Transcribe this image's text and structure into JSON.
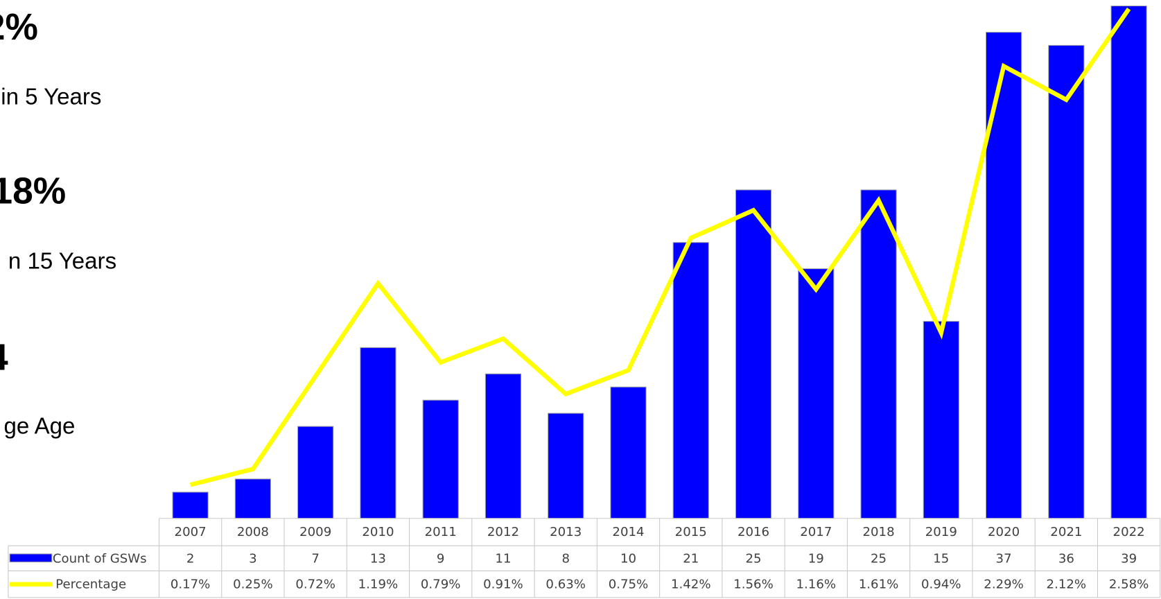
{
  "stats": [
    {
      "value": "2%",
      "label": "in 5 Years"
    },
    {
      "value": "18%",
      "label": "n 15 Years"
    },
    {
      "value": "4",
      "label": "ge Age"
    }
  ],
  "chart_data": {
    "type": "bar",
    "categories": [
      "2007",
      "2008",
      "2009",
      "2010",
      "2011",
      "2012",
      "2013",
      "2014",
      "2015",
      "2016",
      "2017",
      "2018",
      "2019",
      "2020",
      "2021",
      "2022"
    ],
    "series": [
      {
        "name": "Count of GSWs",
        "color": "#0000ff",
        "type": "bar",
        "values": [
          2,
          3,
          7,
          13,
          9,
          11,
          8,
          10,
          21,
          25,
          19,
          25,
          15,
          37,
          36,
          39
        ]
      },
      {
        "name": "Percentage",
        "color": "#ffff00",
        "type": "line",
        "axis": "y2",
        "values": [
          0.17,
          0.25,
          0.72,
          1.19,
          0.79,
          0.91,
          0.63,
          0.75,
          1.42,
          1.56,
          1.16,
          1.61,
          0.94,
          2.29,
          2.12,
          2.58
        ],
        "value_labels": [
          "0.17%",
          "0.25%",
          "0.72%",
          "1.19%",
          "0.79%",
          "0.91%",
          "0.63%",
          "0.75%",
          "1.42%",
          "1.56%",
          "1.16%",
          "1.61%",
          "0.94%",
          "2.29%",
          "2.12%",
          "2.58%"
        ]
      }
    ]
  }
}
